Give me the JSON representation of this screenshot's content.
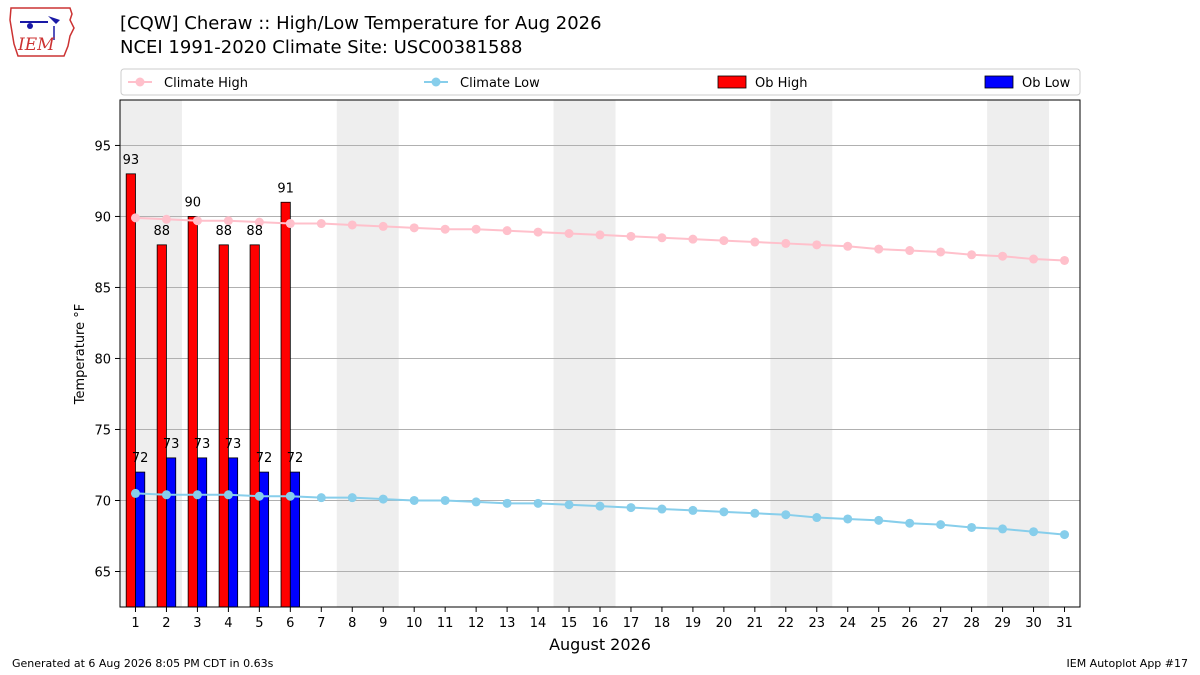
{
  "header": {
    "title_line1": "[CQW] Cheraw :: High/Low Temperature for Aug 2026",
    "title_line2": "NCEI 1991-2020 Climate Site: USC00381588"
  },
  "logo": {
    "text": "IEM",
    "icon": "iem-logo-icon"
  },
  "footer": {
    "left": "Generated at 6 Aug 2026 8:05 PM CDT in 0.63s",
    "right": "IEM Autoplot App #17"
  },
  "chart_data": {
    "type": "bar",
    "xlabel": "August 2026",
    "ylabel": "Temperature °F",
    "ylim": [
      62.5,
      98.2
    ],
    "xlim": [
      0.5,
      31.5
    ],
    "yticks": [
      65,
      70,
      75,
      80,
      85,
      90,
      95
    ],
    "x": [
      1,
      2,
      3,
      4,
      5,
      6,
      7,
      8,
      9,
      10,
      11,
      12,
      13,
      14,
      15,
      16,
      17,
      18,
      19,
      20,
      21,
      22,
      23,
      24,
      25,
      26,
      27,
      28,
      29,
      30,
      31
    ],
    "weekend_shading": [
      [
        1,
        2
      ],
      [
        8,
        9
      ],
      [
        15,
        16
      ],
      [
        22,
        23
      ],
      [
        29,
        30
      ]
    ],
    "grid": "horizontal",
    "legend_placement": "top",
    "series": [
      {
        "name": "Climate High",
        "kind": "line",
        "color": "#ffc0cb",
        "values": [
          89.9,
          89.8,
          89.7,
          89.7,
          89.6,
          89.5,
          89.5,
          89.4,
          89.3,
          89.2,
          89.1,
          89.1,
          89.0,
          88.9,
          88.8,
          88.7,
          88.6,
          88.5,
          88.4,
          88.3,
          88.2,
          88.1,
          88.0,
          87.9,
          87.7,
          87.6,
          87.5,
          87.3,
          87.2,
          87.0,
          86.9
        ]
      },
      {
        "name": "Climate Low",
        "kind": "line",
        "color": "#87ceeb",
        "values": [
          70.5,
          70.4,
          70.4,
          70.4,
          70.3,
          70.3,
          70.2,
          70.2,
          70.1,
          70.0,
          70.0,
          69.9,
          69.8,
          69.8,
          69.7,
          69.6,
          69.5,
          69.4,
          69.3,
          69.2,
          69.1,
          69.0,
          68.8,
          68.7,
          68.6,
          68.4,
          68.3,
          68.1,
          68.0,
          67.8,
          67.6
        ]
      },
      {
        "name": "Ob High",
        "kind": "bar",
        "color": "#ff0000",
        "x": [
          1,
          2,
          3,
          4,
          5,
          6
        ],
        "values": [
          93,
          88,
          90,
          88,
          88,
          91
        ]
      },
      {
        "name": "Ob Low",
        "kind": "bar",
        "color": "#0000ff",
        "x": [
          1,
          2,
          3,
          4,
          5,
          6
        ],
        "values": [
          72,
          73,
          73,
          73,
          72,
          72
        ]
      }
    ]
  }
}
